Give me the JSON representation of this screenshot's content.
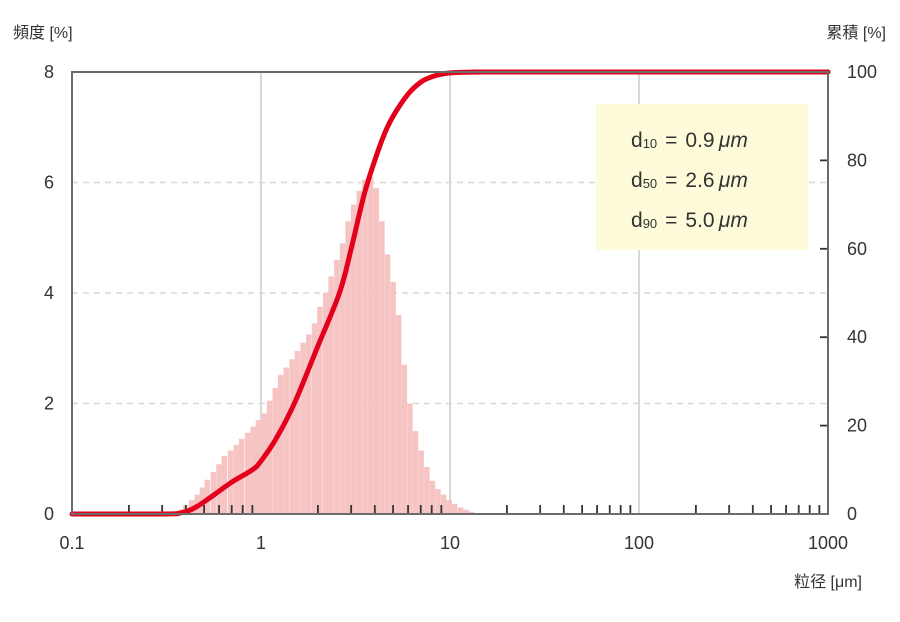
{
  "chart_data": {
    "type": "bar+line",
    "y_left_label": "頻度 [%]",
    "y_right_label": "累積 [%]",
    "x_label": "粒径 [μm]",
    "x_scale": "log",
    "x_range": [
      0.1,
      1000
    ],
    "y_left_range": [
      0,
      8
    ],
    "y_right_range": [
      0,
      100
    ],
    "x_ticks": [
      "0.1",
      "1",
      "10",
      "100",
      "1000"
    ],
    "x_tick_values": [
      0.1,
      1,
      10,
      100,
      1000
    ],
    "y_left_ticks": [
      "0",
      "2",
      "4",
      "6",
      "8"
    ],
    "y_left_tick_values": [
      0,
      2,
      4,
      6,
      8
    ],
    "y_right_ticks": [
      "0",
      "20",
      "40",
      "60",
      "80",
      "100"
    ],
    "y_right_tick_values": [
      0,
      20,
      40,
      60,
      80,
      100
    ],
    "grid": "vertical solid at decades, horizontal dashed at left ticks",
    "bar_color": "#f7c4c4",
    "line_color": "#e3001b",
    "frequency": {
      "x": [
        0.38,
        0.4,
        0.43,
        0.46,
        0.49,
        0.52,
        0.56,
        0.6,
        0.64,
        0.69,
        0.74,
        0.79,
        0.85,
        0.91,
        0.97,
        1.04,
        1.11,
        1.19,
        1.27,
        1.36,
        1.46,
        1.56,
        1.67,
        1.79,
        1.92,
        2.05,
        2.2,
        2.35,
        2.52,
        2.7,
        2.89,
        3.09,
        3.31,
        3.55,
        3.8,
        4.07,
        4.36,
        4.67,
        5.0,
        5.35,
        5.73,
        6.14,
        6.57,
        7.04,
        7.54,
        8.07,
        8.64,
        9.25,
        9.91,
        10.6,
        11.4,
        12.2,
        13.0
      ],
      "y": [
        0.08,
        0.15,
        0.25,
        0.35,
        0.48,
        0.62,
        0.76,
        0.9,
        1.05,
        1.15,
        1.25,
        1.36,
        1.47,
        1.58,
        1.7,
        1.82,
        2.05,
        2.28,
        2.52,
        2.65,
        2.8,
        2.95,
        3.1,
        3.25,
        3.45,
        3.75,
        4.0,
        4.3,
        4.6,
        4.9,
        5.3,
        5.6,
        5.85,
        6.05,
        6.1,
        5.9,
        5.3,
        4.7,
        4.2,
        3.6,
        2.7,
        2.0,
        1.5,
        1.15,
        0.85,
        0.6,
        0.45,
        0.35,
        0.25,
        0.18,
        0.12,
        0.08,
        0.04
      ]
    },
    "cumulative": {
      "x": [
        0.1,
        0.3,
        0.38,
        0.45,
        0.55,
        0.7,
        0.9,
        1.0,
        1.2,
        1.5,
        2.0,
        2.6,
        3.0,
        3.5,
        4.0,
        4.5,
        5.0,
        6.0,
        7.0,
        8.0,
        9.0,
        10.0,
        12.0,
        15.0,
        20.0,
        1000
      ],
      "y": [
        0,
        0,
        0.3,
        1.5,
        4.0,
        7.2,
        10.0,
        12.0,
        17.0,
        25.0,
        38.0,
        50.0,
        60.0,
        72.0,
        80.0,
        86.0,
        90.0,
        95.0,
        97.7,
        98.9,
        99.5,
        99.8,
        99.95,
        100,
        100,
        100
      ]
    },
    "annotations": [
      {
        "main": "d",
        "sub": "10",
        "value": "0.9",
        "unit": "μm"
      },
      {
        "main": "d",
        "sub": "50",
        "value": "2.6",
        "unit": "μm"
      },
      {
        "main": "d",
        "sub": "90",
        "value": "5.0",
        "unit": "μm"
      }
    ],
    "equals": "="
  }
}
